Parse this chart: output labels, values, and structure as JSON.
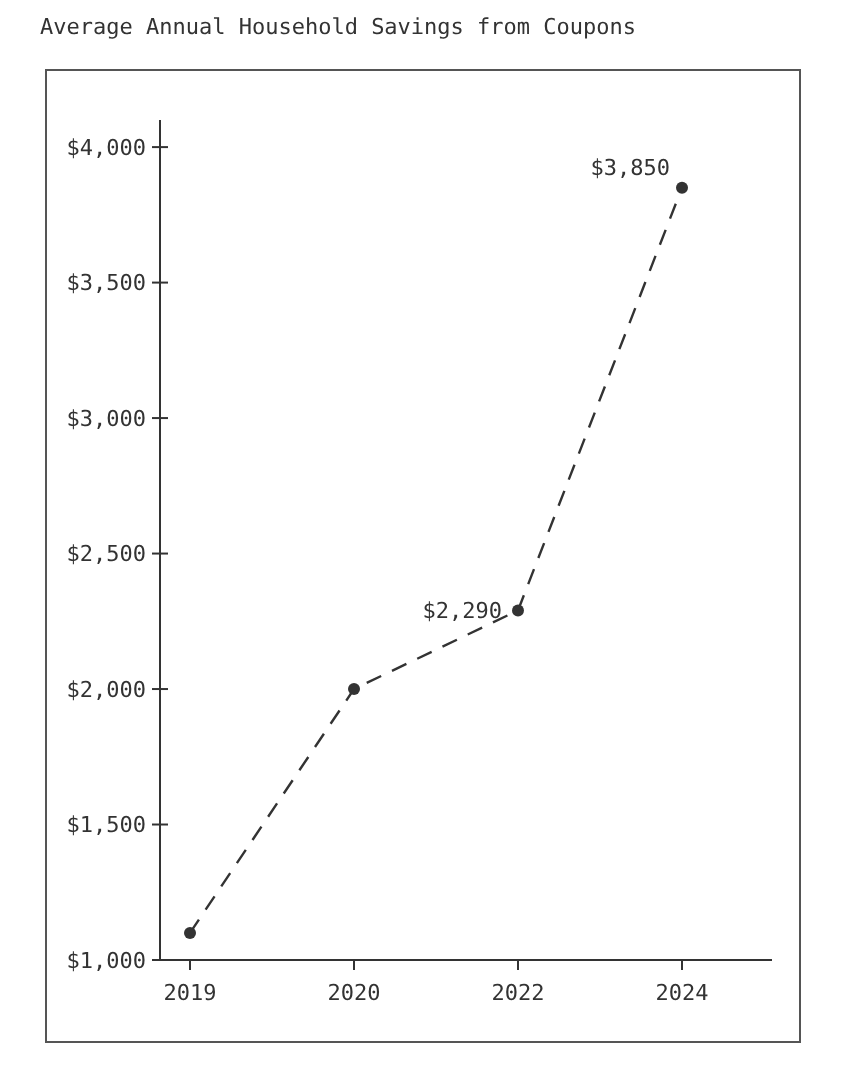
{
  "chart_data": {
    "type": "line",
    "title": "Average Annual Household Savings from Coupons",
    "categories": [
      "2019",
      "2020",
      "2022",
      "2024"
    ],
    "series": [
      {
        "color": "#333333",
        "values": [
          1100,
          2000,
          2290,
          3850
        ],
        "value_labels": [
          null,
          null,
          "$2,290",
          "$3,850"
        ]
      }
    ],
    "ylim": [
      1000,
      4100
    ],
    "yticks": [
      {
        "value": 1000,
        "label": "$1,000"
      },
      {
        "value": 1500,
        "label": "$1,500"
      },
      {
        "value": 2000,
        "label": "$2,000"
      },
      {
        "value": 2500,
        "label": "$2,500"
      },
      {
        "value": 3000,
        "label": "$3,000"
      },
      {
        "value": 3500,
        "label": "$3,500"
      },
      {
        "value": 4000,
        "label": "$4,000"
      }
    ],
    "line_style": "dashed",
    "marker": "circle",
    "grid": false
  }
}
